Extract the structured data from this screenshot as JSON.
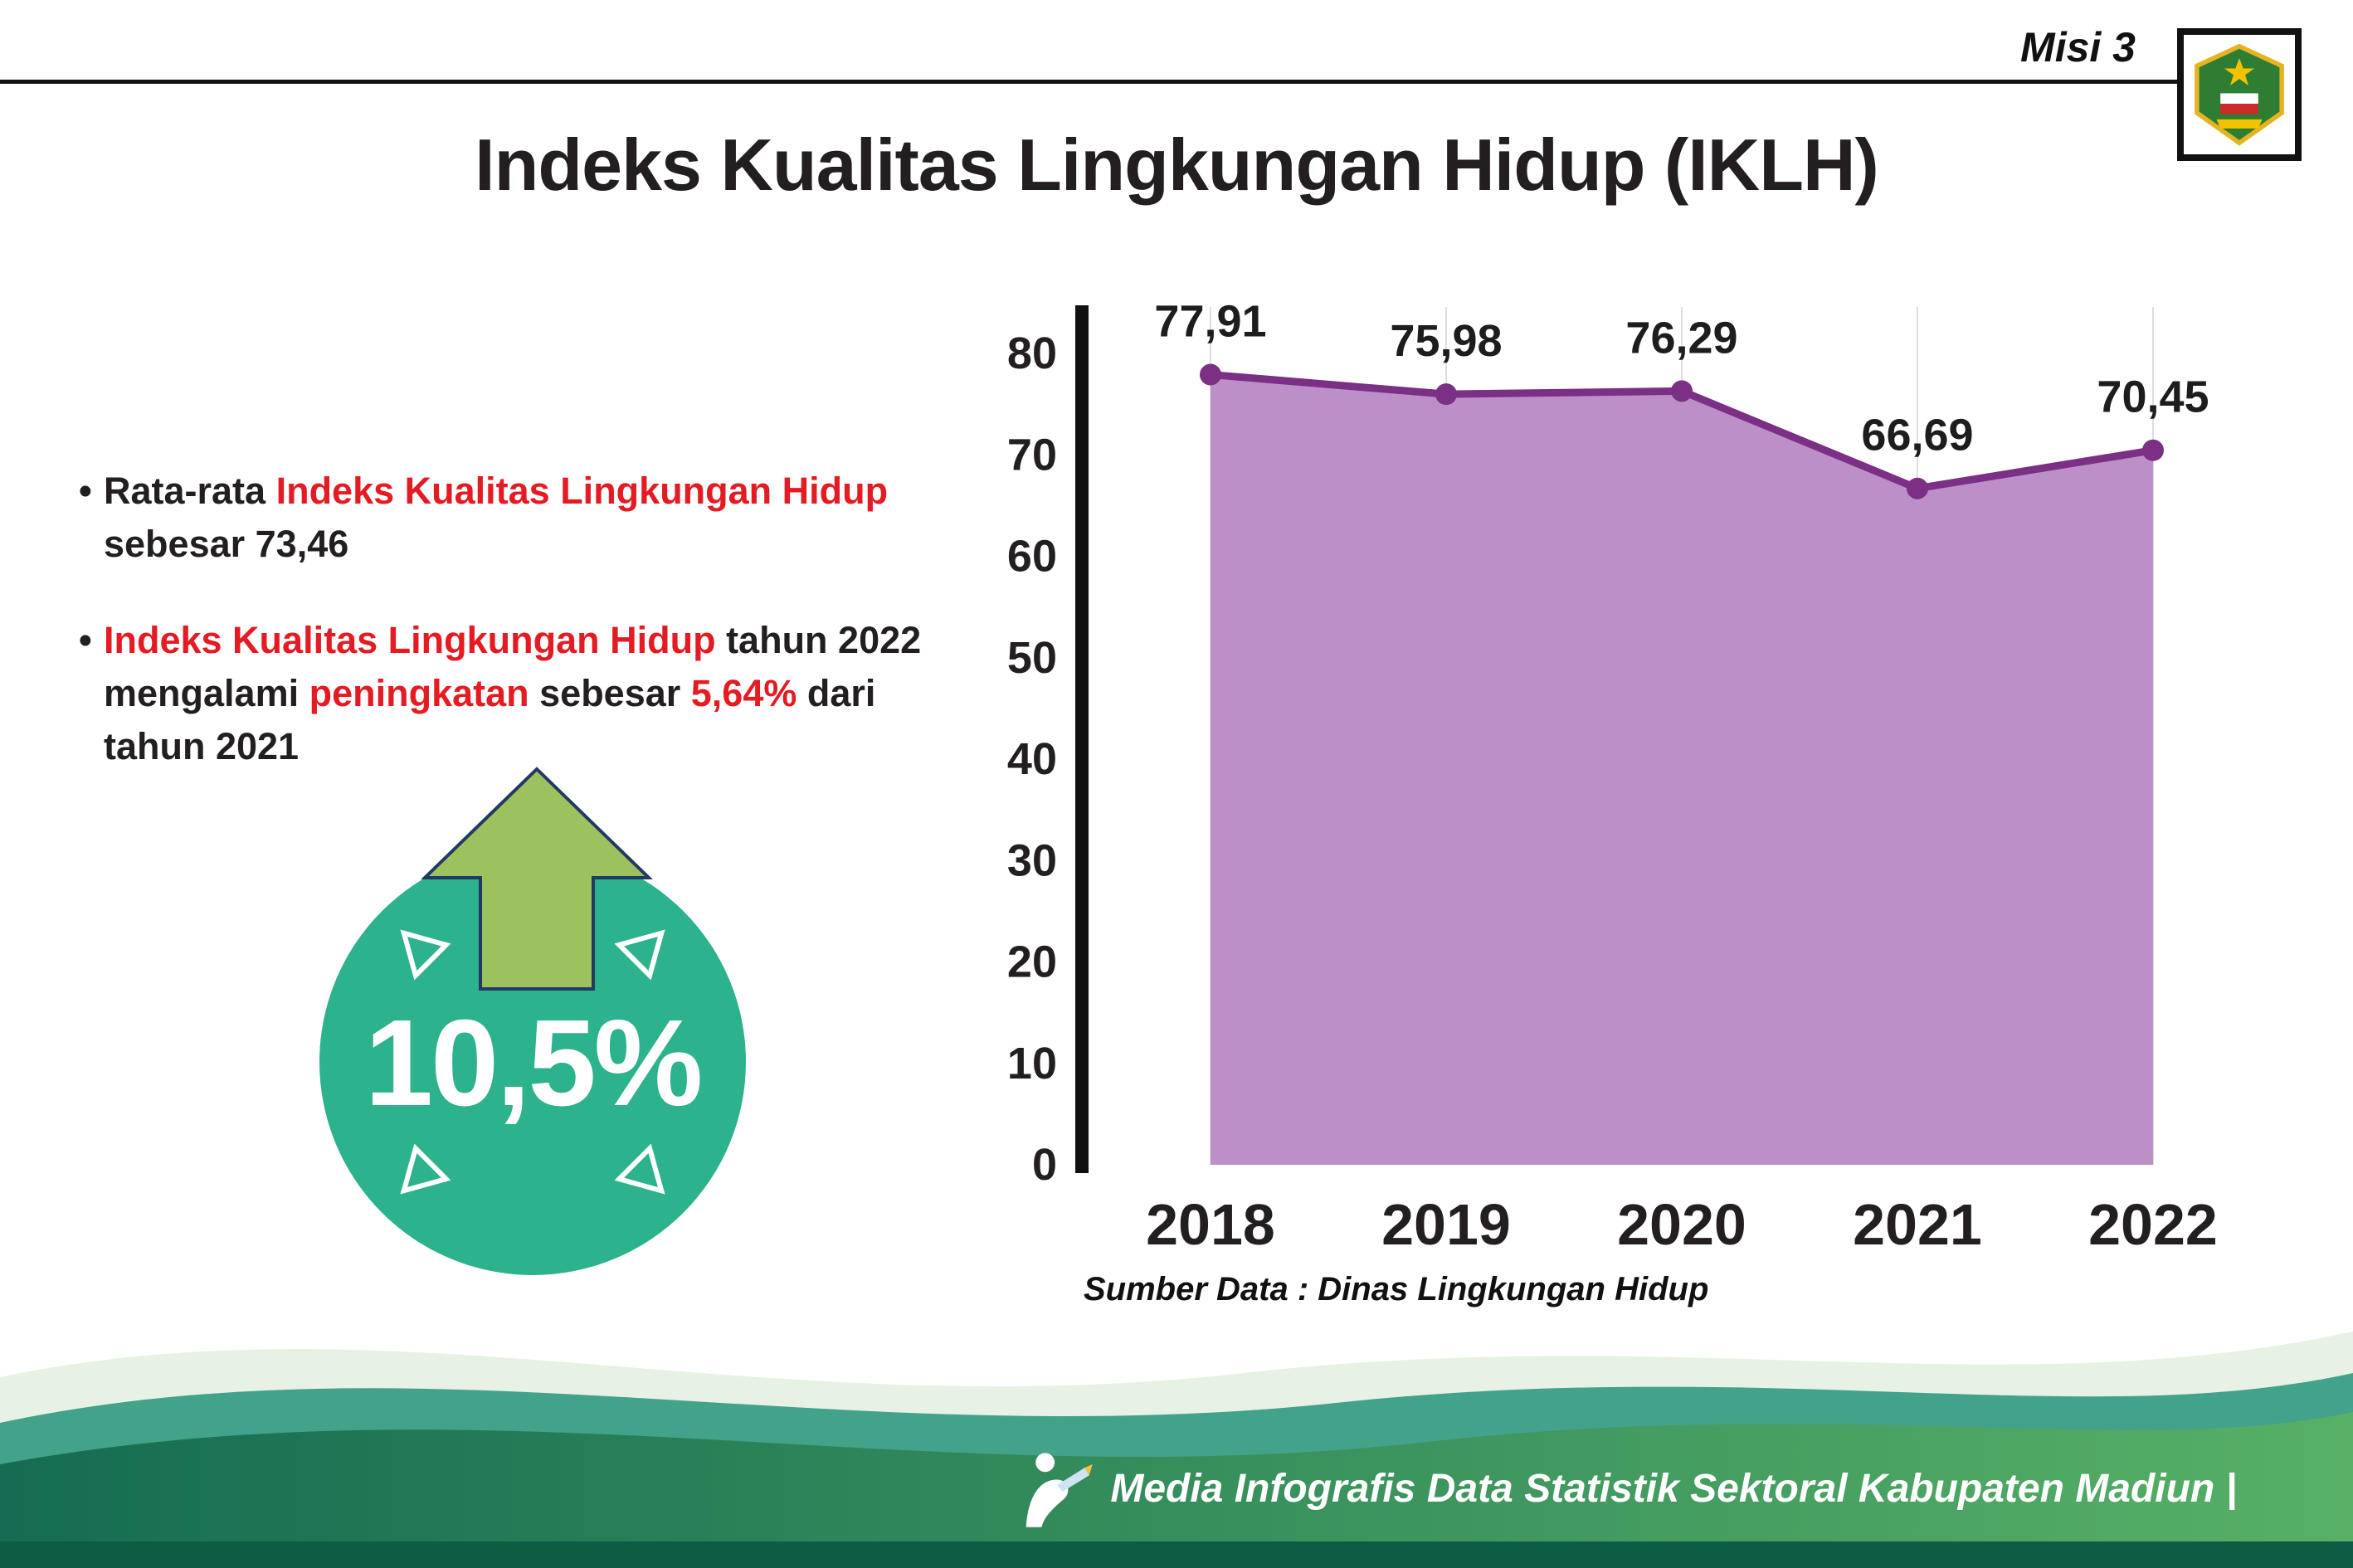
{
  "header": {
    "misi_label": "Misi 3",
    "title": "Indeks Kualitas Lingkungan Hidup (IKLH)"
  },
  "bullets": [
    {
      "segments": [
        {
          "text": "Rata-rata ",
          "red": false
        },
        {
          "text": "Indeks Kualitas Lingkungan Hidup",
          "red": true
        },
        {
          "text": "\nsebesar 73,46",
          "red": false
        }
      ]
    },
    {
      "segments": [
        {
          "text": "Indeks Kualitas Lingkungan Hidup",
          "red": true
        },
        {
          "text": " tahun 2022\nmengalami ",
          "red": false
        },
        {
          "text": "peningkatan",
          "red": true
        },
        {
          "text": " sebesar ",
          "red": false
        },
        {
          "text": "5,64%",
          "red": true
        },
        {
          "text": " dari\ntahun 2021",
          "red": false
        }
      ]
    }
  ],
  "badge": {
    "value": "10,5%",
    "direction": "up",
    "circle_color": "#2db28e",
    "arrow_color": "#9cc15f"
  },
  "chart_data": {
    "type": "area",
    "title": "",
    "categories": [
      "2018",
      "2019",
      "2020",
      "2021",
      "2022"
    ],
    "values": [
      77.91,
      75.98,
      76.29,
      66.69,
      70.45
    ],
    "value_labels": [
      "77,91",
      "75,98",
      "76,29",
      "66,69",
      "70,45"
    ],
    "xlabel": "",
    "ylabel": "",
    "ylim": [
      0,
      80
    ],
    "yticks": [
      0,
      10,
      20,
      30,
      40,
      50,
      60,
      70,
      80
    ],
    "grid": "vertical",
    "legend": "none",
    "line_color": "#7b2f85",
    "fill_color": "#bd8fc9",
    "source": "Sumber Data : Dinas Lingkungan Hidup"
  },
  "footer": {
    "caption": "Media Infografis Data Statistik Sektoral Kabupaten Madiun |"
  }
}
